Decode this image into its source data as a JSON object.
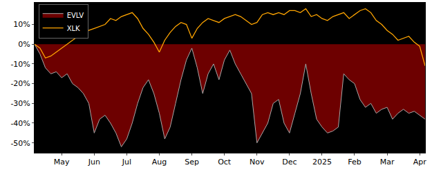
{
  "chart_data": {
    "type": "line",
    "categories": [
      null,
      null,
      null,
      null,
      null,
      "May",
      null,
      null,
      null,
      null,
      null,
      "Jun",
      null,
      null,
      null,
      null,
      null,
      "Jul",
      null,
      null,
      null,
      null,
      null,
      "Aug",
      null,
      null,
      null,
      null,
      null,
      "Sep",
      null,
      null,
      null,
      null,
      null,
      "Oct",
      null,
      null,
      null,
      null,
      null,
      "Nov",
      null,
      null,
      null,
      null,
      null,
      "Dec",
      null,
      null,
      null,
      null,
      null,
      "2025",
      null,
      null,
      null,
      null,
      null,
      "Feb",
      null,
      null,
      null,
      null,
      null,
      "Mar",
      null,
      null,
      null,
      null,
      null,
      "Apr",
      null
    ],
    "series": [
      {
        "name": "EVLV",
        "color": "#a8a8a8",
        "values": [
          0,
          -5,
          -12,
          -15,
          -14,
          -17,
          -15,
          -20,
          -22,
          -25,
          -30,
          -45,
          -38,
          -36,
          -40,
          -45,
          -52,
          -48,
          -40,
          -30,
          -22,
          -18,
          -25,
          -35,
          -48,
          -42,
          -30,
          -18,
          -8,
          -2,
          -12,
          -25,
          -15,
          -10,
          -18,
          -8,
          -3,
          -10,
          -15,
          -20,
          -25,
          -50,
          -45,
          -40,
          -30,
          -28,
          -40,
          -45,
          -35,
          -25,
          -10,
          -25,
          -38,
          -42,
          -45,
          -44,
          -42,
          -15,
          -18,
          -20,
          -28,
          -32,
          -30,
          -35,
          -33,
          -32,
          -38,
          -35,
          -33,
          -35,
          -34,
          -36,
          -38
        ]
      },
      {
        "name": "XLK",
        "color": "#ffa500",
        "values": [
          0,
          -2,
          -7,
          -6,
          -4,
          -2,
          0,
          2,
          4,
          5,
          7,
          8,
          9,
          10,
          13,
          12,
          14,
          15,
          16,
          13,
          8,
          5,
          1,
          -4,
          2,
          6,
          9,
          11,
          10,
          3,
          8,
          11,
          13,
          12,
          11,
          13,
          14,
          15,
          14,
          12,
          10,
          11,
          15,
          16,
          15,
          16,
          15,
          17,
          17,
          16,
          18,
          14,
          15,
          13,
          12,
          14,
          15,
          16,
          13,
          15,
          17,
          18,
          16,
          12,
          10,
          7,
          5,
          2,
          3,
          4,
          1,
          -1,
          -11
        ]
      }
    ],
    "ylim": [
      -55,
      21
    ],
    "yticks": [
      {
        "value": 10,
        "label": "10%"
      },
      {
        "value": 0,
        "label": "0%"
      },
      {
        "value": -10,
        "label": "-10%"
      },
      {
        "value": -20,
        "label": "-20%"
      },
      {
        "value": -30,
        "label": "-30%"
      },
      {
        "value": -40,
        "label": "-40%"
      },
      {
        "value": -50,
        "label": "-50%"
      }
    ],
    "grid": false,
    "legend": "upper left"
  }
}
